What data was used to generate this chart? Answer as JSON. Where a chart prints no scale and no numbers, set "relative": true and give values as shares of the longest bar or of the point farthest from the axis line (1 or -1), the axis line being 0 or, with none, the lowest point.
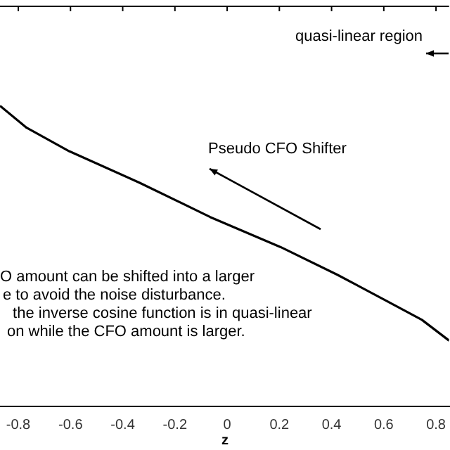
{
  "chart_data": {
    "type": "line",
    "xlabel": "z",
    "relative": true,
    "tick_labels": "x",
    "grid": false,
    "legend": false,
    "marker": "none",
    "line_style": "solid",
    "x": [
      -0.87,
      -0.768,
      -0.605,
      -0.335,
      -0.065,
      0.205,
      0.422,
      0.6,
      0.746,
      0.85
    ],
    "xlim": [
      -0.87,
      0.85
    ],
    "xticks": [
      -0.8,
      -0.6,
      -0.4,
      -0.2,
      0,
      0.2,
      0.4,
      0.6,
      0.8
    ],
    "series": [
      {
        "color": "#000000",
        "values": [
          1.0,
          0.927,
          0.849,
          0.744,
          0.63,
          0.53,
          0.438,
          0.356,
          0.288,
          0.219
        ]
      }
    ],
    "annotations": [
      "quasi-linear region",
      "Pseudo CFO Shifter",
      "O amount can be shifted into a larger",
      "e to avoid the noise disturbance.",
      " the inverse cosine function is in quasi-linear",
      "on while the CFO amount is larger."
    ]
  }
}
